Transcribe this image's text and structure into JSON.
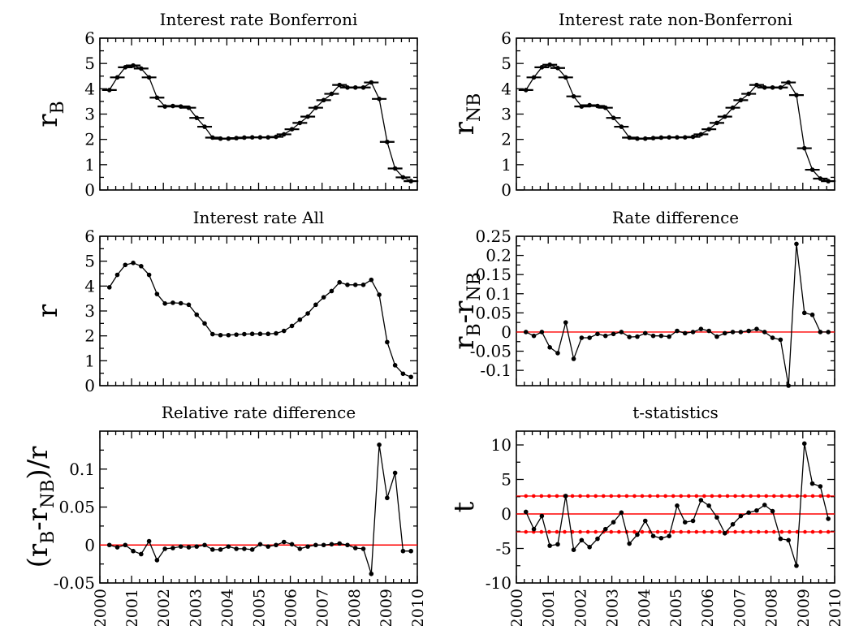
{
  "chart_data": [
    {
      "id": "rb",
      "type": "line",
      "title": "Interest rate Bonferroni",
      "ylabel": "r",
      "ylabel_sub": "B",
      "xlim": [
        2000,
        2010
      ],
      "ylim": [
        0,
        6
      ],
      "yticks": [
        0,
        1,
        2,
        3,
        4,
        5,
        6
      ],
      "ytick_labels": [
        "0",
        "1",
        "2",
        "3",
        "4",
        "5",
        "6"
      ],
      "error_bars": true,
      "series": [
        {
          "color": "#000000",
          "x": [
            2000.3,
            2000.55,
            2000.8,
            2001.05,
            2001.3,
            2001.55,
            2001.8,
            2002.05,
            2002.3,
            2002.55,
            2002.8,
            2003.05,
            2003.3,
            2003.55,
            2003.8,
            2004.05,
            2004.3,
            2004.55,
            2004.8,
            2005.05,
            2005.3,
            2005.55,
            2005.8,
            2006.05,
            2006.3,
            2006.55,
            2006.8,
            2007.05,
            2007.3,
            2007.55,
            2007.8,
            2008.05,
            2008.3,
            2008.55,
            2008.8,
            2009.05,
            2009.3,
            2009.55,
            2009.8
          ],
          "values": [
            3.95,
            4.45,
            4.85,
            4.92,
            4.8,
            4.45,
            3.65,
            3.3,
            3.32,
            3.3,
            3.25,
            2.85,
            2.5,
            2.07,
            2.03,
            2.03,
            2.05,
            2.07,
            2.08,
            2.08,
            2.08,
            2.1,
            2.2,
            2.4,
            2.65,
            2.9,
            3.25,
            3.55,
            3.8,
            4.15,
            4.05,
            4.05,
            4.05,
            4.25,
            3.6,
            1.9,
            0.85,
            0.5,
            0.35
          ]
        }
      ]
    },
    {
      "id": "rnb",
      "type": "line",
      "title": "Interest rate non-Bonferroni",
      "ylabel": "r",
      "ylabel_sub": "NB",
      "xlim": [
        2000,
        2010
      ],
      "ylim": [
        0,
        6
      ],
      "yticks": [
        0,
        1,
        2,
        3,
        4,
        5,
        6
      ],
      "ytick_labels": [
        "0",
        "1",
        "2",
        "3",
        "4",
        "5",
        "6"
      ],
      "error_bars": true,
      "series": [
        {
          "color": "#000000",
          "x": [
            2000.3,
            2000.55,
            2000.8,
            2001.05,
            2001.3,
            2001.55,
            2001.8,
            2002.05,
            2002.3,
            2002.55,
            2002.8,
            2003.05,
            2003.3,
            2003.55,
            2003.8,
            2004.05,
            2004.3,
            2004.55,
            2004.8,
            2005.05,
            2005.3,
            2005.55,
            2005.8,
            2006.05,
            2006.3,
            2006.55,
            2006.8,
            2007.05,
            2007.3,
            2007.55,
            2007.8,
            2008.05,
            2008.3,
            2008.55,
            2008.8,
            2009.05,
            2009.3,
            2009.55,
            2009.8
          ],
          "values": [
            3.95,
            4.45,
            4.85,
            4.95,
            4.82,
            4.45,
            3.7,
            3.3,
            3.35,
            3.32,
            3.25,
            2.85,
            2.5,
            2.07,
            2.03,
            2.03,
            2.05,
            2.07,
            2.08,
            2.08,
            2.08,
            2.1,
            2.2,
            2.4,
            2.65,
            2.9,
            3.25,
            3.55,
            3.8,
            4.15,
            4.05,
            4.05,
            4.05,
            4.25,
            3.75,
            1.65,
            0.8,
            0.45,
            0.35
          ]
        }
      ]
    },
    {
      "id": "rall",
      "type": "line",
      "title": "Interest rate All",
      "ylabel": "r",
      "ylabel_sub": "",
      "xlim": [
        2000,
        2010
      ],
      "ylim": [
        0,
        6
      ],
      "yticks": [
        0,
        1,
        2,
        3,
        4,
        5,
        6
      ],
      "ytick_labels": [
        "0",
        "1",
        "2",
        "3",
        "4",
        "5",
        "6"
      ],
      "error_bars": false,
      "series": [
        {
          "color": "#000000",
          "x": [
            2000.3,
            2000.55,
            2000.8,
            2001.05,
            2001.3,
            2001.55,
            2001.8,
            2002.05,
            2002.3,
            2002.55,
            2002.8,
            2003.05,
            2003.3,
            2003.55,
            2003.8,
            2004.05,
            2004.3,
            2004.55,
            2004.8,
            2005.05,
            2005.3,
            2005.55,
            2005.8,
            2006.05,
            2006.3,
            2006.55,
            2006.8,
            2007.05,
            2007.3,
            2007.55,
            2007.8,
            2008.05,
            2008.3,
            2008.55,
            2008.8,
            2009.05,
            2009.3,
            2009.55,
            2009.8
          ],
          "values": [
            3.95,
            4.45,
            4.85,
            4.93,
            4.8,
            4.45,
            3.68,
            3.3,
            3.33,
            3.31,
            3.25,
            2.85,
            2.5,
            2.07,
            2.03,
            2.03,
            2.05,
            2.07,
            2.08,
            2.08,
            2.08,
            2.1,
            2.2,
            2.4,
            2.65,
            2.9,
            3.25,
            3.55,
            3.8,
            4.15,
            4.05,
            4.05,
            4.05,
            4.25,
            3.65,
            1.75,
            0.82,
            0.48,
            0.35
          ]
        }
      ]
    },
    {
      "id": "rdiff",
      "type": "line",
      "title": "Rate difference",
      "ylabel": "r",
      "ylabel_sub": "B",
      "ylabel_mid": "-r",
      "ylabel_sub2": "NB",
      "xlim": [
        2000,
        2010
      ],
      "ylim": [
        -0.14,
        0.25
      ],
      "yticks": [
        -0.1,
        -0.05,
        0,
        0.05,
        0.1,
        0.15,
        0.2,
        0.25
      ],
      "ytick_labels": [
        "-0.1",
        "-0.05",
        "0",
        "0.05",
        "0.1",
        "0.15",
        "0.2",
        "0.25"
      ],
      "error_bars": false,
      "reference_lines": [
        {
          "y": 0,
          "color": "#ff0000",
          "dashed": false
        }
      ],
      "series": [
        {
          "color": "#000000",
          "x": [
            2000.3,
            2000.55,
            2000.8,
            2001.05,
            2001.3,
            2001.55,
            2001.8,
            2002.05,
            2002.3,
            2002.55,
            2002.8,
            2003.05,
            2003.3,
            2003.55,
            2003.8,
            2004.05,
            2004.3,
            2004.55,
            2004.8,
            2005.05,
            2005.3,
            2005.55,
            2005.8,
            2006.05,
            2006.3,
            2006.55,
            2006.8,
            2007.05,
            2007.3,
            2007.55,
            2007.8,
            2008.05,
            2008.3,
            2008.55,
            2008.8,
            2009.05,
            2009.3,
            2009.55,
            2009.8
          ],
          "values": [
            0.0,
            -0.01,
            0.0,
            -0.04,
            -0.055,
            0.025,
            -0.07,
            -0.015,
            -0.015,
            -0.005,
            -0.01,
            -0.005,
            0.0,
            -0.013,
            -0.012,
            -0.003,
            -0.01,
            -0.01,
            -0.012,
            0.003,
            -0.003,
            0.0,
            0.008,
            0.003,
            -0.012,
            -0.003,
            0.0,
            0.0,
            0.003,
            0.008,
            0.0,
            -0.015,
            -0.02,
            -0.14,
            0.23,
            0.05,
            0.045,
            0.0,
            0.0
          ]
        }
      ]
    },
    {
      "id": "reldiff",
      "type": "line",
      "title": "Relative rate difference",
      "ylabel": "(r",
      "ylabel_sub": "B",
      "ylabel_mid": "-r",
      "ylabel_sub2": "NB",
      "ylabel_end": ")/r",
      "xlim": [
        2000,
        2010
      ],
      "ylim": [
        -0.05,
        0.15
      ],
      "yticks": [
        -0.05,
        0,
        0.05,
        0.1
      ],
      "ytick_labels": [
        "-0.05",
        "0",
        "0.05",
        "0.1"
      ],
      "xticks": [
        2000,
        2001,
        2002,
        2003,
        2004,
        2005,
        2006,
        2007,
        2008,
        2009,
        2010
      ],
      "xtick_labels": [
        "2000",
        "2001",
        "2002",
        "2003",
        "2004",
        "2005",
        "2006",
        "2007",
        "2008",
        "2009",
        "2010"
      ],
      "error_bars": false,
      "reference_lines": [
        {
          "y": 0,
          "color": "#ff0000",
          "dashed": false
        }
      ],
      "series": [
        {
          "color": "#000000",
          "x": [
            2000.3,
            2000.55,
            2000.8,
            2001.05,
            2001.3,
            2001.55,
            2001.8,
            2002.05,
            2002.3,
            2002.55,
            2002.8,
            2003.05,
            2003.3,
            2003.55,
            2003.8,
            2004.05,
            2004.3,
            2004.55,
            2004.8,
            2005.05,
            2005.3,
            2005.55,
            2005.8,
            2006.05,
            2006.3,
            2006.55,
            2006.8,
            2007.05,
            2007.3,
            2007.55,
            2007.8,
            2008.05,
            2008.3,
            2008.55,
            2008.8,
            2009.05,
            2009.3,
            2009.55,
            2009.8
          ],
          "values": [
            0.0,
            -0.003,
            0.0,
            -0.008,
            -0.012,
            0.005,
            -0.02,
            -0.005,
            -0.004,
            -0.002,
            -0.003,
            -0.002,
            0.0,
            -0.006,
            -0.006,
            -0.002,
            -0.005,
            -0.005,
            -0.006,
            0.001,
            -0.002,
            0.0,
            0.004,
            0.001,
            -0.005,
            -0.002,
            0.0,
            0.0,
            0.001,
            0.002,
            0.0,
            -0.004,
            -0.005,
            -0.038,
            0.132,
            0.062,
            0.095,
            -0.008,
            -0.008
          ]
        }
      ]
    },
    {
      "id": "tstat",
      "type": "line",
      "title": "t-statistics",
      "ylabel": "t",
      "ylabel_sub": "",
      "xlim": [
        2000,
        2010
      ],
      "ylim": [
        -10,
        12
      ],
      "yticks": [
        -10,
        -5,
        0,
        5,
        10
      ],
      "ytick_labels": [
        "-10",
        "-5",
        "0",
        "5",
        "10"
      ],
      "xticks": [
        2000,
        2001,
        2002,
        2003,
        2004,
        2005,
        2006,
        2007,
        2008,
        2009,
        2010
      ],
      "xtick_labels": [
        "2000",
        "2001",
        "2002",
        "2003",
        "2004",
        "2005",
        "2006",
        "2007",
        "2008",
        "2009",
        "2010"
      ],
      "error_bars": false,
      "reference_lines": [
        {
          "y": 0,
          "color": "#ff0000",
          "dashed": false
        },
        {
          "y": 2.6,
          "color": "#ff0000",
          "dashed": true
        },
        {
          "y": -2.6,
          "color": "#ff0000",
          "dashed": true
        }
      ],
      "series": [
        {
          "color": "#000000",
          "x": [
            2000.3,
            2000.55,
            2000.8,
            2001.05,
            2001.3,
            2001.55,
            2001.8,
            2002.05,
            2002.3,
            2002.55,
            2002.8,
            2003.05,
            2003.3,
            2003.55,
            2003.8,
            2004.05,
            2004.3,
            2004.55,
            2004.8,
            2005.05,
            2005.3,
            2005.55,
            2005.8,
            2006.05,
            2006.3,
            2006.55,
            2006.8,
            2007.05,
            2007.3,
            2007.55,
            2007.8,
            2008.05,
            2008.3,
            2008.55,
            2008.8,
            2009.05,
            2009.3,
            2009.55,
            2009.8
          ],
          "values": [
            0.3,
            -2.2,
            -0.3,
            -4.6,
            -4.4,
            2.6,
            -5.2,
            -3.8,
            -4.8,
            -3.6,
            -2.2,
            -1.2,
            0.2,
            -4.3,
            -3.0,
            -1.0,
            -3.2,
            -3.5,
            -3.2,
            1.2,
            -1.2,
            -1.0,
            2.0,
            1.2,
            -0.5,
            -2.8,
            -1.5,
            -0.3,
            0.2,
            0.5,
            1.3,
            0.4,
            -3.6,
            -3.8,
            -7.5,
            10.2,
            4.4,
            4.0,
            -0.7
          ]
        }
      ]
    }
  ]
}
